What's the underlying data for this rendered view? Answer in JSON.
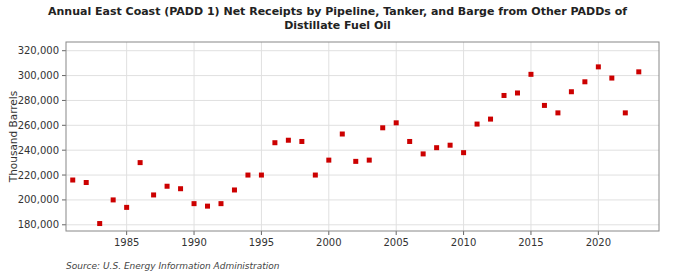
{
  "chart_data": {
    "type": "scatter",
    "title": "Annual East Coast (PADD 1) Net Receipts by Pipeline, Tanker, and Barge from Other PADDs of\nDistillate Fuel Oil",
    "y_label": "Thousand Barrels",
    "annotation": "Source: U.S. Energy Information Administration",
    "x": [
      1981,
      1982,
      1983,
      1984,
      1985,
      1986,
      1987,
      1988,
      1989,
      1990,
      1991,
      1992,
      1993,
      1994,
      1995,
      1996,
      1997,
      1998,
      1999,
      2000,
      2001,
      2002,
      2003,
      2004,
      2005,
      2006,
      2007,
      2008,
      2009,
      2010,
      2011,
      2012,
      2013,
      2014,
      2015,
      2016,
      2017,
      2018,
      2019,
      2020,
      2021,
      2022,
      2023
    ],
    "values": [
      216000,
      214000,
      181000,
      200000,
      194000,
      230000,
      204000,
      211000,
      209000,
      197000,
      195000,
      197000,
      208000,
      220000,
      220000,
      246000,
      248000,
      247000,
      220000,
      232000,
      253000,
      231000,
      232000,
      258000,
      262000,
      247000,
      237000,
      242000,
      244000,
      238000,
      261000,
      265000,
      284000,
      286000,
      301000,
      276000,
      270000,
      287000,
      295000,
      307000,
      298000,
      270000,
      303000
    ],
    "color": "#cc0000",
    "marker": "square",
    "grid": true,
    "xlim": [
      1980.5,
      2024.5
    ],
    "xticks": [
      1985,
      1990,
      1995,
      2000,
      2005,
      2010,
      2015,
      2020
    ],
    "ylim": [
      175000,
      327000
    ],
    "yticks": [
      {
        "value": 180000,
        "label": "180,000"
      },
      {
        "value": 200000,
        "label": "200,000"
      },
      {
        "value": 220000,
        "label": "220,000"
      },
      {
        "value": 240000,
        "label": "240,000"
      },
      {
        "value": 260000,
        "label": "260,000"
      },
      {
        "value": 280000,
        "label": "280,000"
      },
      {
        "value": 300000,
        "label": "300,000"
      },
      {
        "value": 320000,
        "label": "320,000"
      }
    ]
  }
}
